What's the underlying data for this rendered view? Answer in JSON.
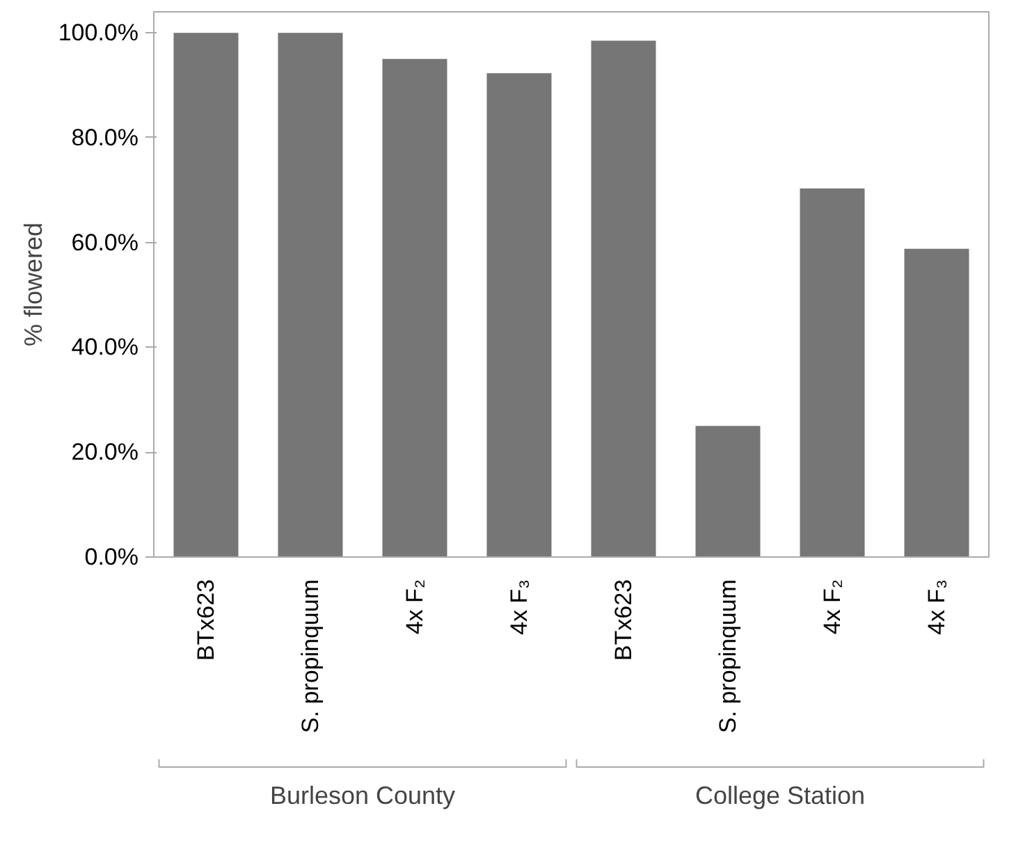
{
  "chart_data": {
    "type": "bar",
    "ylabel": "% flowered",
    "categories": [
      "BTx623",
      "S. propinquum",
      "4x F₂",
      "4x F₃",
      "BTx623",
      "S. propinquum",
      "4x F₂",
      "4x F₃"
    ],
    "values": [
      100,
      100,
      95,
      92.3,
      98.5,
      25,
      70.3,
      58.8
    ],
    "color": "#767676",
    "ylim": [
      0,
      104
    ],
    "yticks": [
      {
        "value": 0,
        "label": "0.0%"
      },
      {
        "value": 20,
        "label": "20.0%"
      },
      {
        "value": 40,
        "label": "40.0%"
      },
      {
        "value": 60,
        "label": "60.0%"
      },
      {
        "value": 80,
        "label": "80.0%"
      },
      {
        "value": 100,
        "label": "100.0%"
      }
    ],
    "grid": false,
    "annotations": [
      "Burleson County",
      "College Station"
    ]
  }
}
